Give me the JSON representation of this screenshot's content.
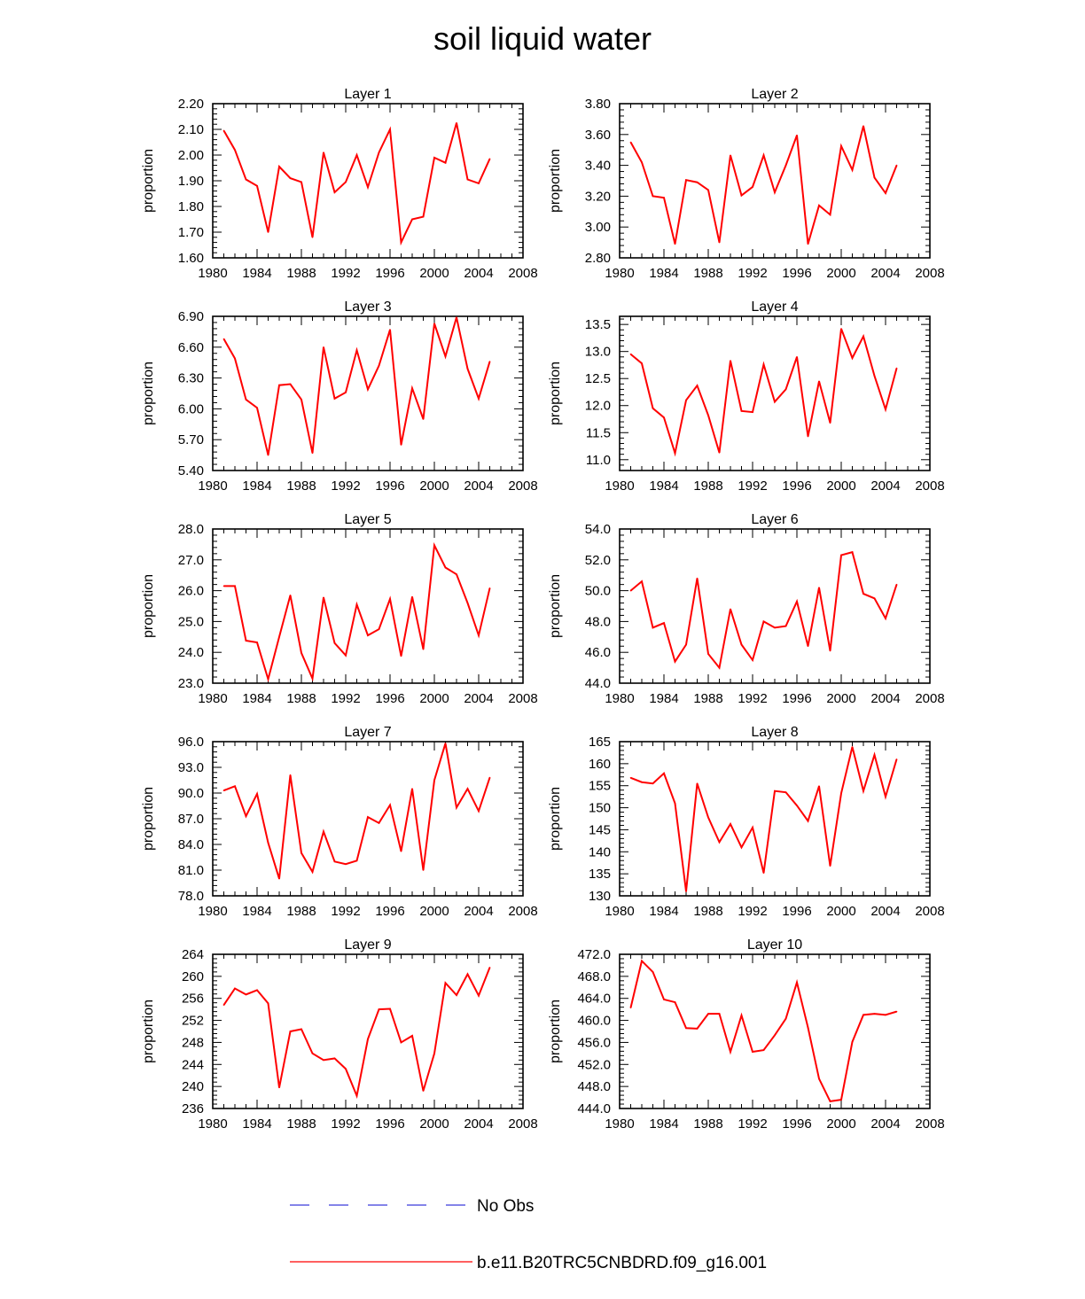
{
  "figure": {
    "title": "soil liquid water"
  },
  "legend": [
    {
      "label": "No Obs",
      "color": "#3b3bd9",
      "dash": true
    },
    {
      "label": "b.e11.B20TRC5CNBDRD.f09_g16.001",
      "color": "#ff0000",
      "dash": false
    }
  ],
  "chart_data": [
    {
      "type": "line",
      "title": "Layer 1",
      "ylabel": "proportion",
      "xlim": [
        1980,
        2008
      ],
      "xticks": [
        "1980",
        "1984",
        "1988",
        "1992",
        "1996",
        "2000",
        "2004",
        "2008"
      ],
      "ylim": [
        1.6,
        2.2
      ],
      "yticks": [
        "1.60",
        "1.70",
        "1.80",
        "1.90",
        "2.00",
        "2.10",
        "2.20"
      ],
      "x": [
        1981,
        1982,
        1983,
        1984,
        1985,
        1986,
        1987,
        1988,
        1989,
        1990,
        1991,
        1992,
        1993,
        1994,
        1995,
        1996,
        1997,
        1998,
        1999,
        2000,
        2001,
        2002,
        2003,
        2004,
        2005
      ],
      "series": [
        {
          "name": "b.e11.B20TRC5CNBDRD.f09_g16.001",
          "color": "#ff0000",
          "values": [
            2.095,
            2.02,
            1.905,
            1.88,
            1.7,
            1.955,
            1.91,
            1.895,
            1.68,
            2.01,
            1.855,
            1.895,
            2.0,
            1.875,
            2.01,
            2.1,
            1.66,
            1.75,
            1.76,
            1.99,
            1.97,
            2.125,
            1.905,
            1.89,
            1.985
          ]
        }
      ]
    },
    {
      "type": "line",
      "title": "Layer 2",
      "ylabel": "proportion",
      "xlim": [
        1980,
        2008
      ],
      "xticks": [
        "1980",
        "1984",
        "1988",
        "1992",
        "1996",
        "2000",
        "2004",
        "2008"
      ],
      "ylim": [
        2.8,
        3.8
      ],
      "yticks": [
        "2.80",
        "3.00",
        "3.20",
        "3.40",
        "3.60",
        "3.80"
      ],
      "x": [
        1981,
        1982,
        1983,
        1984,
        1985,
        1986,
        1987,
        1988,
        1989,
        1990,
        1991,
        1992,
        1993,
        1994,
        1995,
        1996,
        1997,
        1998,
        1999,
        2000,
        2001,
        2002,
        2003,
        2004,
        2005
      ],
      "series": [
        {
          "name": "b.e11.B20TRC5CNBDRD.f09_g16.001",
          "color": "#ff0000",
          "values": [
            3.55,
            3.42,
            3.2,
            3.19,
            2.89,
            3.305,
            3.29,
            3.24,
            2.9,
            3.465,
            3.205,
            3.26,
            3.465,
            3.225,
            3.4,
            3.595,
            2.89,
            3.14,
            3.08,
            3.525,
            3.37,
            3.655,
            3.32,
            3.22,
            3.4
          ]
        }
      ]
    },
    {
      "type": "line",
      "title": "Layer 3",
      "ylabel": "proportion",
      "xlim": [
        1980,
        2008
      ],
      "xticks": [
        "1980",
        "1984",
        "1988",
        "1992",
        "1996",
        "2000",
        "2004",
        "2008"
      ],
      "ylim": [
        5.4,
        6.9
      ],
      "yticks": [
        "5.40",
        "5.70",
        "6.00",
        "6.30",
        "6.60",
        "6.90"
      ],
      "x": [
        1981,
        1982,
        1983,
        1984,
        1985,
        1986,
        1987,
        1988,
        1989,
        1990,
        1991,
        1992,
        1993,
        1994,
        1995,
        1996,
        1997,
        1998,
        1999,
        2000,
        2001,
        2002,
        2003,
        2004,
        2005
      ],
      "series": [
        {
          "name": "b.e11.B20TRC5CNBDRD.f09_g16.001",
          "color": "#ff0000",
          "values": [
            6.68,
            6.49,
            6.09,
            6.01,
            5.55,
            6.23,
            6.24,
            6.09,
            5.57,
            6.6,
            6.1,
            6.16,
            6.57,
            6.19,
            6.42,
            6.77,
            5.65,
            6.2,
            5.9,
            6.83,
            6.51,
            6.89,
            6.39,
            6.1,
            6.46
          ]
        }
      ]
    },
    {
      "type": "line",
      "title": "Layer 4",
      "ylabel": "proportion",
      "xlim": [
        1980,
        2008
      ],
      "xticks": [
        "1980",
        "1984",
        "1988",
        "1992",
        "1996",
        "2000",
        "2004",
        "2008"
      ],
      "ylim": [
        10.8,
        13.65
      ],
      "yticks": [
        "11.0",
        "11.5",
        "12.0",
        "12.5",
        "13.0",
        "13.5"
      ],
      "ytick_values": [
        11.0,
        11.5,
        12.0,
        12.5,
        13.0,
        13.5
      ],
      "x": [
        1981,
        1982,
        1983,
        1984,
        1985,
        1986,
        1987,
        1988,
        1989,
        1990,
        1991,
        1992,
        1993,
        1994,
        1995,
        1996,
        1997,
        1998,
        1999,
        2000,
        2001,
        2002,
        2003,
        2004,
        2005
      ],
      "series": [
        {
          "name": "b.e11.B20TRC5CNBDRD.f09_g16.001",
          "color": "#ff0000",
          "values": [
            12.95,
            12.78,
            11.95,
            11.78,
            11.12,
            12.1,
            12.37,
            11.82,
            11.13,
            12.83,
            11.9,
            11.88,
            12.76,
            12.07,
            12.3,
            12.9,
            11.43,
            12.45,
            11.68,
            13.42,
            12.88,
            13.28,
            12.55,
            11.93,
            12.69
          ]
        }
      ]
    },
    {
      "type": "line",
      "title": "Layer 5",
      "ylabel": "proportion",
      "xlim": [
        1980,
        2008
      ],
      "xticks": [
        "1980",
        "1984",
        "1988",
        "1992",
        "1996",
        "2000",
        "2004",
        "2008"
      ],
      "ylim": [
        23.0,
        28.0
      ],
      "yticks": [
        "23.0",
        "24.0",
        "25.0",
        "26.0",
        "27.0",
        "28.0"
      ],
      "x": [
        1981,
        1982,
        1983,
        1984,
        1985,
        1986,
        1987,
        1988,
        1989,
        1990,
        1991,
        1992,
        1993,
        1994,
        1995,
        1996,
        1997,
        1998,
        1999,
        2000,
        2001,
        2002,
        2003,
        2004,
        2005
      ],
      "series": [
        {
          "name": "b.e11.B20TRC5CNBDRD.f09_g16.001",
          "color": "#ff0000",
          "values": [
            26.15,
            26.15,
            24.38,
            24.32,
            23.13,
            24.5,
            25.85,
            23.98,
            23.15,
            25.78,
            24.3,
            23.9,
            25.55,
            24.55,
            24.75,
            25.73,
            23.88,
            25.8,
            24.1,
            27.47,
            26.75,
            26.53,
            25.6,
            24.55,
            26.08
          ]
        }
      ]
    },
    {
      "type": "line",
      "title": "Layer 6",
      "ylabel": "proportion",
      "xlim": [
        1980,
        2008
      ],
      "xticks": [
        "1980",
        "1984",
        "1988",
        "1992",
        "1996",
        "2000",
        "2004",
        "2008"
      ],
      "ylim": [
        44.0,
        54.0
      ],
      "yticks": [
        "44.0",
        "46.0",
        "48.0",
        "50.0",
        "52.0",
        "54.0"
      ],
      "x": [
        1981,
        1982,
        1983,
        1984,
        1985,
        1986,
        1987,
        1988,
        1989,
        1990,
        1991,
        1992,
        1993,
        1994,
        1995,
        1996,
        1997,
        1998,
        1999,
        2000,
        2001,
        2002,
        2003,
        2004,
        2005
      ],
      "series": [
        {
          "name": "b.e11.B20TRC5CNBDRD.f09_g16.001",
          "color": "#ff0000",
          "values": [
            50.0,
            50.6,
            47.6,
            47.9,
            45.4,
            46.5,
            50.8,
            45.9,
            45.0,
            48.8,
            46.5,
            45.5,
            48.0,
            47.6,
            47.7,
            49.3,
            46.4,
            50.2,
            46.1,
            52.3,
            52.5,
            49.8,
            49.5,
            48.2,
            50.4
          ]
        }
      ]
    },
    {
      "type": "line",
      "title": "Layer 7",
      "ylabel": "proportion",
      "xlim": [
        1980,
        2008
      ],
      "xticks": [
        "1980",
        "1984",
        "1988",
        "1992",
        "1996",
        "2000",
        "2004",
        "2008"
      ],
      "ylim": [
        78.0,
        96.0
      ],
      "yticks": [
        "78.0",
        "81.0",
        "84.0",
        "87.0",
        "90.0",
        "93.0",
        "96.0"
      ],
      "x": [
        1981,
        1982,
        1983,
        1984,
        1985,
        1986,
        1987,
        1988,
        1989,
        1990,
        1991,
        1992,
        1993,
        1994,
        1995,
        1996,
        1997,
        1998,
        1999,
        2000,
        2001,
        2002,
        2003,
        2004,
        2005
      ],
      "series": [
        {
          "name": "b.e11.B20TRC5CNBDRD.f09_g16.001",
          "color": "#ff0000",
          "values": [
            90.3,
            90.8,
            87.3,
            89.9,
            84.2,
            80.0,
            92.1,
            83.0,
            80.8,
            85.5,
            82.0,
            81.7,
            82.1,
            87.2,
            86.5,
            88.6,
            83.2,
            90.5,
            81.0,
            91.5,
            95.8,
            88.3,
            90.5,
            87.9,
            91.8
          ]
        }
      ]
    },
    {
      "type": "line",
      "title": "Layer 8",
      "ylabel": "proportion",
      "xlim": [
        1980,
        2008
      ],
      "xticks": [
        "1980",
        "1984",
        "1988",
        "1992",
        "1996",
        "2000",
        "2004",
        "2008"
      ],
      "ylim": [
        130,
        165
      ],
      "yticks": [
        "130",
        "135",
        "140",
        "145",
        "150",
        "155",
        "160",
        "165"
      ],
      "x": [
        1981,
        1982,
        1983,
        1984,
        1985,
        1986,
        1987,
        1988,
        1989,
        1990,
        1991,
        1992,
        1993,
        1994,
        1995,
        1996,
        1997,
        1998,
        1999,
        2000,
        2001,
        2002,
        2003,
        2004,
        2005
      ],
      "series": [
        {
          "name": "b.e11.B20TRC5CNBDRD.f09_g16.001",
          "color": "#ff0000",
          "values": [
            156.8,
            155.8,
            155.5,
            157.8,
            151.0,
            131.0,
            155.5,
            147.8,
            142.2,
            146.3,
            141.0,
            145.5,
            135.2,
            153.8,
            153.5,
            150.5,
            147.0,
            154.9,
            136.8,
            153.3,
            163.8,
            153.8,
            162.0,
            152.5,
            161.0
          ]
        }
      ]
    },
    {
      "type": "line",
      "title": "Layer 9",
      "ylabel": "proportion",
      "xlim": [
        1980,
        2008
      ],
      "xticks": [
        "1980",
        "1984",
        "1988",
        "1992",
        "1996",
        "2000",
        "2004",
        "2008"
      ],
      "ylim": [
        236,
        264
      ],
      "yticks": [
        "236",
        "240",
        "244",
        "248",
        "252",
        "256",
        "260",
        "264"
      ],
      "x": [
        1981,
        1982,
        1983,
        1984,
        1985,
        1986,
        1987,
        1988,
        1989,
        1990,
        1991,
        1992,
        1993,
        1994,
        1995,
        1996,
        1997,
        1998,
        1999,
        2000,
        2001,
        2002,
        2003,
        2004,
        2005
      ],
      "series": [
        {
          "name": "b.e11.B20TRC5CNBDRD.f09_g16.001",
          "color": "#ff0000",
          "values": [
            254.8,
            257.8,
            256.7,
            257.5,
            255.1,
            239.8,
            250.0,
            250.4,
            246.0,
            244.8,
            245.1,
            243.2,
            238.3,
            248.6,
            254.0,
            254.1,
            248.0,
            249.2,
            239.2,
            246.0,
            258.8,
            256.6,
            260.4,
            256.5,
            261.6
          ]
        }
      ]
    },
    {
      "type": "line",
      "title": "Layer 10",
      "ylabel": "proportion",
      "xlim": [
        1980,
        2008
      ],
      "xticks": [
        "1980",
        "1984",
        "1988",
        "1992",
        "1996",
        "2000",
        "2004",
        "2008"
      ],
      "ylim": [
        444.0,
        472.0
      ],
      "yticks": [
        "444.0",
        "448.0",
        "452.0",
        "456.0",
        "460.0",
        "464.0",
        "468.0",
        "472.0"
      ],
      "x": [
        1981,
        1982,
        1983,
        1984,
        1985,
        1986,
        1987,
        1988,
        1989,
        1990,
        1991,
        1992,
        1993,
        1994,
        1995,
        1996,
        1997,
        1998,
        1999,
        2000,
        2001,
        2002,
        2003,
        2004,
        2005
      ],
      "series": [
        {
          "name": "b.e11.B20TRC5CNBDRD.f09_g16.001",
          "color": "#ff0000",
          "values": [
            462.3,
            470.8,
            468.8,
            463.8,
            463.3,
            458.6,
            458.5,
            461.2,
            461.2,
            454.3,
            460.9,
            454.3,
            454.6,
            457.3,
            460.3,
            466.9,
            458.7,
            449.4,
            445.3,
            445.6,
            456.1,
            461.0,
            461.2,
            461.0,
            461.6
          ]
        }
      ]
    }
  ]
}
